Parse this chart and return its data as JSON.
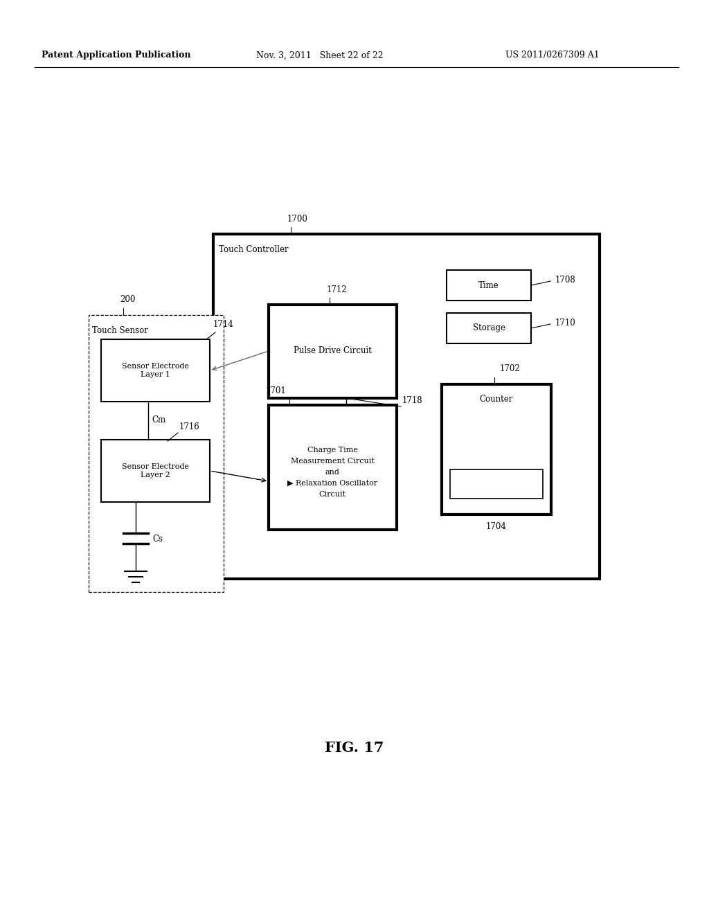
{
  "bg_color": "#ffffff",
  "header_left": "Patent Application Publication",
  "header_mid": "Nov. 3, 2011   Sheet 22 of 22",
  "header_right": "US 2011/0267309 A1",
  "fig_label": "FIG. 17",
  "touch_sensor_label": "Touch Sensor",
  "touch_sensor_ref": "200",
  "touch_controller_label": "Touch Controller",
  "touch_controller_ref": "1700",
  "sel1_label": "Sensor Electrode\nLayer 1",
  "sel1_ref": "1714",
  "sel2_label": "Sensor Electrode\nLayer 2",
  "cm_label": "Cm",
  "cm_ref": "1716",
  "cs_label": "Cs",
  "pdc_label": "Pulse Drive Circuit",
  "pdc_ref": "1712",
  "ctmc_line1": "Charge Time",
  "ctmc_line2": "Measurement Circuit",
  "ctmc_line3": "and",
  "ctmc_line4": "▶ Relaxation Oscillator",
  "ctmc_line5": "Circuit",
  "ctmc_ref": "1701",
  "ctmc_conn_ref": "1718",
  "time_label": "Time",
  "time_ref": "1708",
  "storage_label": "Storage",
  "storage_ref": "1710",
  "counter_label": "Counter",
  "counter_ref": "1702",
  "counter_inner_ref": "1704"
}
